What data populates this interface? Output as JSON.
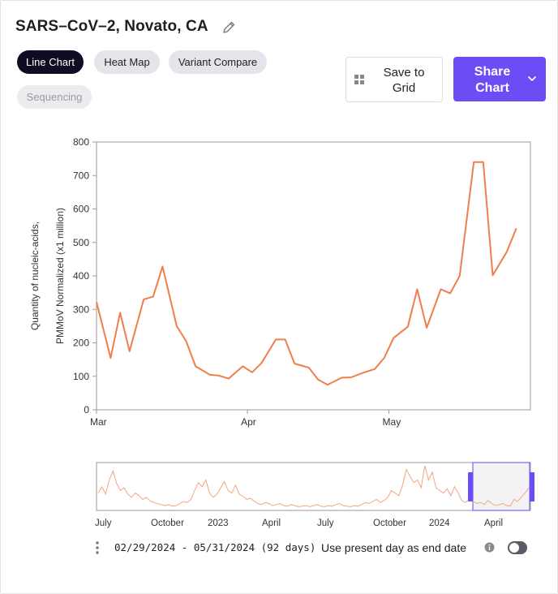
{
  "header": {
    "title": "SARS–CoV–2, Novato, CA"
  },
  "tabs": [
    {
      "label": "Line Chart",
      "state": "active"
    },
    {
      "label": "Heat Map",
      "state": "normal"
    },
    {
      "label": "Variant Compare",
      "state": "normal"
    },
    {
      "label": "Sequencing",
      "state": "disabled"
    }
  ],
  "actions": {
    "save_label_line1": "Save to",
    "save_label_line2": "Grid",
    "share_label_line1": "Share",
    "share_label_line2": "Chart"
  },
  "colors": {
    "accent": "#6c4cf5",
    "series": "#f07d4c",
    "active_tab": "#0f0c24"
  },
  "icons": [
    "pencil-icon",
    "grid-icon",
    "chevron-down-icon",
    "info-icon",
    "kebab-icon"
  ],
  "chart_data": {
    "type": "line",
    "title": "",
    "ylabel_line1": "Quantity of nucleic-acids,",
    "ylabel_line2": "PMMoV Normalized (x1 million)",
    "xlabel": "",
    "ylim": [
      0,
      800
    ],
    "yticks": [
      0,
      100,
      200,
      300,
      400,
      500,
      600,
      700,
      800
    ],
    "xlim": [
      "2024-02-29",
      "2024-05-31"
    ],
    "xticks": [
      {
        "label": "Mar",
        "date": "2024-02-29"
      },
      {
        "label": "Apr",
        "date": "2024-04-01"
      },
      {
        "label": "May",
        "date": "2024-05-01"
      }
    ],
    "grid": false,
    "series": [
      {
        "color": "#f07d4c",
        "points": [
          [
            "2024-02-29",
            322
          ],
          [
            "2024-03-03",
            155
          ],
          [
            "2024-03-05",
            290
          ],
          [
            "2024-03-07",
            175
          ],
          [
            "2024-03-10",
            330
          ],
          [
            "2024-03-12",
            338
          ],
          [
            "2024-03-14",
            428
          ],
          [
            "2024-03-17",
            250
          ],
          [
            "2024-03-19",
            205
          ],
          [
            "2024-03-21",
            130
          ],
          [
            "2024-03-24",
            105
          ],
          [
            "2024-03-26",
            102
          ],
          [
            "2024-03-28",
            93
          ],
          [
            "2024-03-31",
            130
          ],
          [
            "2024-04-02",
            112
          ],
          [
            "2024-04-04",
            140
          ],
          [
            "2024-04-07",
            210
          ],
          [
            "2024-04-09",
            210
          ],
          [
            "2024-04-11",
            138
          ],
          [
            "2024-04-14",
            126
          ],
          [
            "2024-04-16",
            90
          ],
          [
            "2024-04-18",
            75
          ],
          [
            "2024-04-21",
            96
          ],
          [
            "2024-04-23",
            97
          ],
          [
            "2024-04-25",
            108
          ],
          [
            "2024-04-28",
            122
          ],
          [
            "2024-04-30",
            155
          ],
          [
            "2024-05-02",
            215
          ],
          [
            "2024-05-05",
            248
          ],
          [
            "2024-05-07",
            360
          ],
          [
            "2024-05-09",
            245
          ],
          [
            "2024-05-12",
            360
          ],
          [
            "2024-05-14",
            348
          ],
          [
            "2024-05-16",
            400
          ],
          [
            "2024-05-19",
            740
          ],
          [
            "2024-05-21",
            740
          ],
          [
            "2024-05-23",
            402
          ],
          [
            "2024-05-26",
            472
          ],
          [
            "2024-05-28",
            542
          ]
        ]
      }
    ],
    "overview": {
      "xticks": [
        "July",
        "October",
        "2023",
        "April",
        "July",
        "October",
        "2024",
        "April"
      ],
      "selection_start": "2024-02-29",
      "selection_end": "2024-05-31",
      "values": [
        30,
        42,
        28,
        55,
        72,
        48,
        35,
        40,
        28,
        22,
        30,
        25,
        18,
        22,
        15,
        12,
        10,
        8,
        6,
        8,
        5,
        6,
        10,
        14,
        12,
        18,
        35,
        50,
        42,
        55,
        30,
        22,
        28,
        40,
        52,
        35,
        30,
        45,
        28,
        24,
        18,
        20,
        15,
        10,
        8,
        12,
        10,
        6,
        8,
        10,
        6,
        5,
        8,
        6,
        4,
        5,
        6,
        4,
        6,
        8,
        5,
        4,
        6,
        5,
        8,
        10,
        6,
        5,
        4,
        6,
        5,
        8,
        12,
        10,
        14,
        18,
        12,
        16,
        22,
        35,
        30,
        25,
        45,
        75,
        62,
        50,
        55,
        40,
        82,
        55,
        70,
        40,
        35,
        30,
        38,
        25,
        42,
        30,
        15,
        12,
        18,
        14,
        10,
        12,
        8,
        16,
        10,
        6,
        8,
        10,
        6,
        5,
        18,
        14,
        22,
        30,
        40
      ]
    },
    "date_range_text": "02/29/2024 - 05/31/2024 (92 days)",
    "present_day_label": "Use present day as end date"
  }
}
